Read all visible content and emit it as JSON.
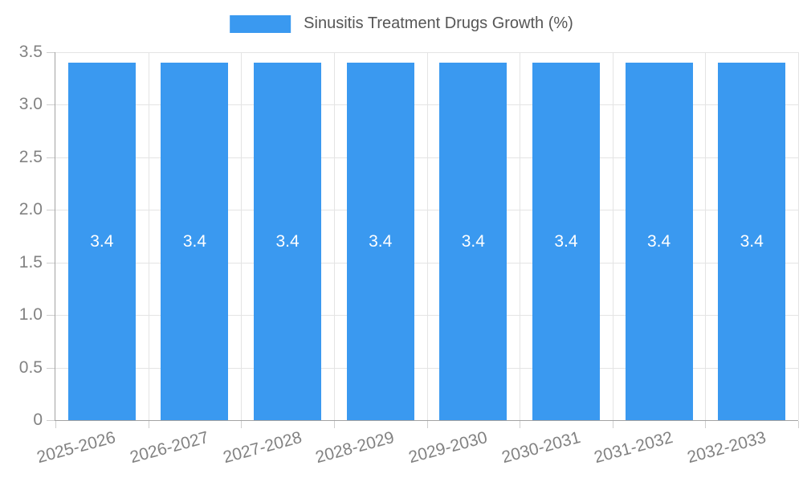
{
  "legend": {
    "label": "Sinusitis Treatment Drugs Growth (%)"
  },
  "chart_data": {
    "type": "bar",
    "title": "Sinusitis Treatment Drugs Growth (%)",
    "categories": [
      "2025-2026",
      "2026-2027",
      "2027-2028",
      "2028-2029",
      "2029-2030",
      "2030-2031",
      "2031-2032",
      "2032-2033"
    ],
    "series": [
      {
        "name": "Sinusitis Treatment Drugs Growth (%)",
        "values": [
          3.4,
          3.4,
          3.4,
          3.4,
          3.4,
          3.4,
          3.4,
          3.4
        ]
      }
    ],
    "value_labels": [
      "3.4",
      "3.4",
      "3.4",
      "3.4",
      "3.4",
      "3.4",
      "3.4",
      "3.4"
    ],
    "xlabel": "",
    "ylabel": "",
    "ylim": [
      0,
      3.5
    ],
    "yticks": [
      0,
      0.5,
      1.0,
      1.5,
      2.0,
      2.5,
      3.0,
      3.5
    ],
    "ytick_labels": [
      "0",
      "0.5",
      "1.0",
      "1.5",
      "2.0",
      "2.5",
      "3.0",
      "3.5"
    ],
    "grid": true,
    "legend_position": "top-center",
    "bar_label_position": "center",
    "colors": {
      "bar": "#3A99F0",
      "grid": "#E4E4E4",
      "axis": "#A3A3A3",
      "tick_mark": "#CFCFCF",
      "tick_text": "#828282",
      "title_text": "#565656",
      "bar_label": "#FFFFFF",
      "background": "#FFFFFF"
    }
  }
}
